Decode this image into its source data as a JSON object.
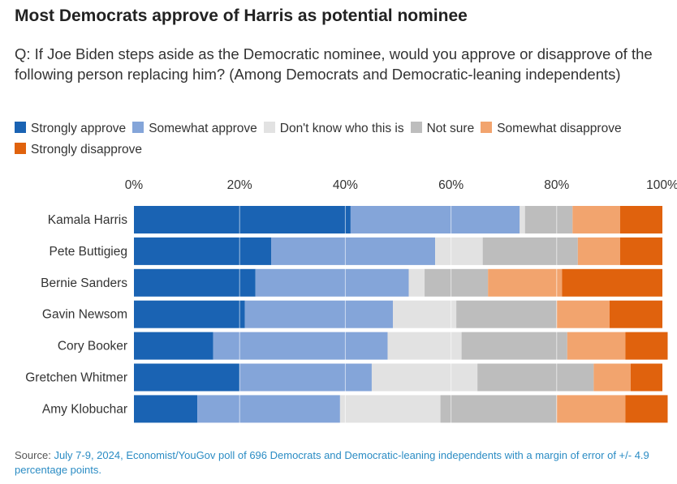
{
  "title": "Most Democrats approve of Harris as potential nominee",
  "question": "Q: If Joe Biden steps aside as the Democratic nominee, would you approve or disapprove of the following person replacing him? (Among Democrats and Democratic-leaning independents)",
  "source": {
    "label": "Source:",
    "text": "July 7-9, 2024, Economist/YouGov poll of 696 Democrats and Democratic-leaning independents with a margin of error of +/- 4.9 percentage points."
  },
  "legend": [
    {
      "label": "Strongly approve",
      "color": "#1a63b3"
    },
    {
      "label": "Somewhat approve",
      "color": "#84a5d9"
    },
    {
      "label": "Don't know who this is",
      "color": "#e2e2e2"
    },
    {
      "label": "Not sure",
      "color": "#bdbdbd"
    },
    {
      "label": "Somewhat disapprove",
      "color": "#f2a46e"
    },
    {
      "label": "Strongly disapprove",
      "color": "#e0620d"
    }
  ],
  "chart_data": {
    "type": "bar",
    "orientation": "horizontal",
    "stacked": true,
    "xlim": [
      0,
      100
    ],
    "ticks": [
      "0%",
      "20%",
      "40%",
      "60%",
      "80%",
      "100%"
    ],
    "tick_values": [
      0,
      20,
      40,
      60,
      80,
      100
    ],
    "categories": [
      "Kamala Harris",
      "Pete Buttigieg",
      "Bernie Sanders",
      "Gavin Newsom",
      "Cory Booker",
      "Gretchen Whitmer",
      "Amy Klobuchar"
    ],
    "series": [
      {
        "name": "Strongly approve",
        "color": "#1a63b3",
        "values": [
          41,
          26,
          23,
          21,
          15,
          20,
          12
        ]
      },
      {
        "name": "Somewhat approve",
        "color": "#84a5d9",
        "values": [
          32,
          31,
          29,
          28,
          33,
          25,
          27
        ]
      },
      {
        "name": "Don't know who this is",
        "color": "#e2e2e2",
        "values": [
          1,
          9,
          3,
          12,
          14,
          20,
          19
        ]
      },
      {
        "name": "Not sure",
        "color": "#bdbdbd",
        "values": [
          9,
          18,
          12,
          19,
          20,
          22,
          22
        ]
      },
      {
        "name": "Somewhat disapprove",
        "color": "#f2a46e",
        "values": [
          9,
          8,
          14,
          10,
          11,
          7,
          13
        ]
      },
      {
        "name": "Strongly disapprove",
        "color": "#e0620d",
        "values": [
          8,
          8,
          19,
          10,
          8,
          6,
          8
        ]
      }
    ]
  }
}
